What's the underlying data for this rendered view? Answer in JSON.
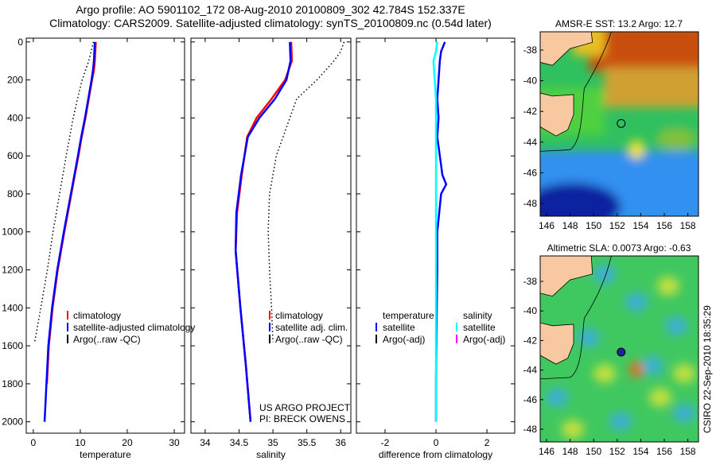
{
  "chart_data": [
    {
      "type": "line",
      "title_line1": "Argo profile: AO 5901102_172 08-Aug-2010 20100809_302 42.784S 152.337E",
      "title_line2": "Climatology: CARS2009. Satellite-adjusted climatology: synTS_20100809.nc (0.54d later)",
      "xlabel": "temperature",
      "xlim": [
        -1.5,
        32.2
      ],
      "ylim": [
        2060,
        -20
      ],
      "xticks": [
        0,
        10,
        20,
        30
      ],
      "yticks": [
        0,
        200,
        400,
        600,
        800,
        1000,
        1200,
        1400,
        1600,
        1800,
        2000
      ],
      "legend": [
        "climatology",
        "satellite-adjusted climatology",
        "Argo(..raw -QC)"
      ],
      "series": [
        {
          "name": "climatology",
          "color": "#ff0000",
          "style": "solid",
          "depth": [
            0,
            100,
            150,
            200,
            300,
            400,
            500,
            600,
            800,
            1000,
            1200,
            1400,
            1600,
            1800
          ],
          "values": [
            13.3,
            13.1,
            12.9,
            12.5,
            11.8,
            11.1,
            10.3,
            9.6,
            8.1,
            6.6,
            5.2,
            4.1,
            3.3,
            2.9
          ]
        },
        {
          "name": "satellite-adjusted climatology",
          "color": "#0000ff",
          "style": "solid",
          "depth": [
            0,
            100,
            150,
            200,
            300,
            400,
            500,
            600,
            800,
            1000,
            1200,
            1400,
            1600,
            1800,
            2000
          ],
          "values": [
            13.1,
            12.9,
            12.7,
            12.4,
            11.7,
            11.0,
            10.2,
            9.5,
            8.0,
            6.5,
            5.1,
            4.0,
            3.2,
            2.8,
            2.4
          ]
        },
        {
          "name": "Argo(..raw -QC)",
          "color": "#000000",
          "style": "dotted",
          "depth": [
            0,
            100,
            200,
            300,
            400,
            600,
            800,
            1000,
            1200,
            1400,
            1580
          ],
          "values": [
            12.8,
            11.8,
            10.4,
            9.4,
            8.5,
            7.0,
            5.6,
            4.2,
            3.0,
            1.6,
            0.3
          ]
        }
      ]
    },
    {
      "type": "line",
      "xlabel": "salinity",
      "xlim": [
        33.79,
        36.15
      ],
      "ylim": [
        2060,
        -20
      ],
      "xticks": [
        34,
        34.5,
        35,
        35.5,
        36
      ],
      "legend": [
        "climatology",
        "satellite adj. clim.",
        "Argo(..raw -QC)"
      ],
      "annotation": [
        "US ARGO PROJECT",
        "PI: BRECK OWENS"
      ],
      "series": [
        {
          "name": "climatology",
          "color": "#ff0000",
          "style": "solid",
          "depth": [
            0,
            100,
            200,
            300,
            400,
            500,
            700,
            900,
            1100,
            1400,
            1700,
            2000
          ],
          "values": [
            35.27,
            35.28,
            35.18,
            34.98,
            34.76,
            34.62,
            34.54,
            34.47,
            34.45,
            34.52,
            34.6,
            34.67
          ]
        },
        {
          "name": "satellite adj. clim.",
          "color": "#0000ff",
          "style": "solid",
          "depth": [
            0,
            100,
            200,
            300,
            400,
            500,
            700,
            900,
            1100,
            1400,
            1700,
            2000
          ],
          "values": [
            35.25,
            35.26,
            35.2,
            35.03,
            34.8,
            34.63,
            34.53,
            34.46,
            34.45,
            34.52,
            34.6,
            34.67
          ]
        },
        {
          "name": "Argo(..raw -QC)",
          "color": "#000000",
          "style": "dotted",
          "depth": [
            0,
            50,
            100,
            200,
            300,
            400,
            600,
            800,
            1000,
            1200,
            1400,
            1580
          ],
          "values": [
            36.05,
            36.0,
            35.9,
            35.65,
            35.35,
            35.25,
            35.05,
            34.95,
            34.93,
            34.95,
            34.98,
            35.0
          ]
        }
      ]
    },
    {
      "type": "line",
      "xlabel": "difference from climatology",
      "xlim": [
        -3.125,
        3.09
      ],
      "ylim": [
        2060,
        -20
      ],
      "xticks": [
        -2,
        0,
        2
      ],
      "legend_temperature": [
        "temperature",
        "satellite",
        "Argo(-adj)"
      ],
      "legend_salinity": [
        "salinity",
        "satellite",
        "Argo(-adj)"
      ],
      "series": [
        {
          "name": "temperature satellite",
          "color": "#0000ff",
          "style": "solid",
          "depth": [
            0,
            50,
            100,
            200,
            300,
            400,
            500,
            600,
            700,
            750,
            800,
            1000,
            1200,
            1500,
            1800,
            2000
          ],
          "values": [
            0.35,
            0.2,
            0.15,
            0.1,
            0.05,
            0.1,
            0.05,
            0.15,
            0.25,
            0.4,
            0.2,
            0.05,
            0.05,
            0.02,
            0.0,
            0.0
          ]
        },
        {
          "name": "salinity satellite",
          "color": "#00ffff",
          "style": "solid",
          "depth": [
            0,
            50,
            100,
            200,
            300,
            400,
            500,
            700,
            1000,
            1500,
            2000
          ],
          "values": [
            0.05,
            0.0,
            -0.1,
            -0.05,
            0.0,
            0.0,
            0.0,
            0.0,
            0.0,
            0.0,
            0.0
          ]
        }
      ]
    }
  ],
  "maps": [
    {
      "title": "AMSR-E SST: 13.2 Argo: 12.7",
      "lon_ticks": [
        "146",
        "148",
        "150",
        "152",
        "154",
        "156",
        "158"
      ],
      "lat_ticks": [
        "-38",
        "-40",
        "-42",
        "-44",
        "-46",
        "-48"
      ]
    },
    {
      "title": "Altimetric SLA: 0.0073 Argo: -0.63",
      "lon_ticks": [
        "146",
        "148",
        "150",
        "152",
        "154",
        "156",
        "158"
      ],
      "lat_ticks": [
        "-38",
        "-40",
        "-42",
        "-44",
        "-46",
        "-48"
      ]
    }
  ],
  "side_label": "CSIRO 22-Sep-2010 18:35:29"
}
